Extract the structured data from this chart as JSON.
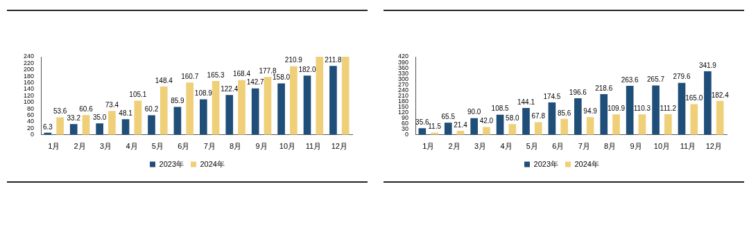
{
  "chart_data": [
    {
      "type": "bar",
      "categories": [
        "1月",
        "2月",
        "3月",
        "4月",
        "5月",
        "6月",
        "7月",
        "8月",
        "9月",
        "10月",
        "11月",
        "12月"
      ],
      "series": [
        {
          "name": "2023年",
          "color": "#1f4e79",
          "values": [
            6.3,
            33.2,
            35.0,
            48.1,
            60.2,
            85.9,
            108.9,
            122.4,
            142.7,
            158.0,
            182.0,
            211.8
          ],
          "value_labels": [
            "6.3",
            "33.2",
            "35.0",
            "48.1",
            "60.2",
            "85.9",
            "108.9",
            "122.4",
            "142.7",
            "158.0",
            "182.0",
            "211.8"
          ]
        },
        {
          "name": "2024年",
          "color": "#f0cf79",
          "values": [
            53.6,
            60.6,
            73.4,
            105.1,
            148.4,
            160.7,
            165.3,
            168.4,
            177.8,
            210.9,
            240,
            240
          ],
          "value_labels": [
            "53.6",
            "60.6",
            "73.4",
            "105.1",
            "148.4",
            "160.7",
            "165.3",
            "168.4",
            "177.8",
            "210.9",
            null,
            null
          ]
        }
      ],
      "ylim": [
        0,
        240
      ],
      "yticks": [
        0,
        20,
        40,
        60,
        80,
        100,
        120,
        140,
        160,
        180,
        200,
        220,
        240
      ],
      "grid": false,
      "legend": "bottom"
    },
    {
      "type": "bar",
      "categories": [
        "1月",
        "2月",
        "3月",
        "4月",
        "5月",
        "6月",
        "7月",
        "8月",
        "9月",
        "10月",
        "11月",
        "12月"
      ],
      "series": [
        {
          "name": "2023年",
          "color": "#1f4e79",
          "values": [
            35.6,
            65.5,
            90.0,
            108.5,
            144.1,
            174.5,
            196.6,
            218.6,
            263.6,
            265.7,
            279.6,
            341.9
          ],
          "value_labels": [
            "35.6",
            "65.5",
            "90.0",
            "108.5",
            "144.1",
            "174.5",
            "196.6",
            "218.6",
            "263.6",
            "265.7",
            "279.6",
            "341.9"
          ]
        },
        {
          "name": "2024年",
          "color": "#f0cf79",
          "values": [
            11.5,
            21.4,
            42.0,
            58.0,
            67.8,
            85.6,
            94.9,
            109.9,
            110.3,
            111.2,
            165.0,
            182.4
          ],
          "value_labels": [
            "11.5",
            "21.4",
            "42.0",
            "58.0",
            "67.8",
            "85.6",
            "94.9",
            "109.9",
            "110.3",
            "111.2",
            "165.0",
            "182.4"
          ]
        }
      ],
      "ylim": [
        0,
        420
      ],
      "yticks": [
        0,
        30,
        60,
        90,
        120,
        150,
        180,
        210,
        240,
        270,
        300,
        330,
        360,
        390,
        420
      ],
      "grid": false,
      "legend": "bottom"
    }
  ]
}
